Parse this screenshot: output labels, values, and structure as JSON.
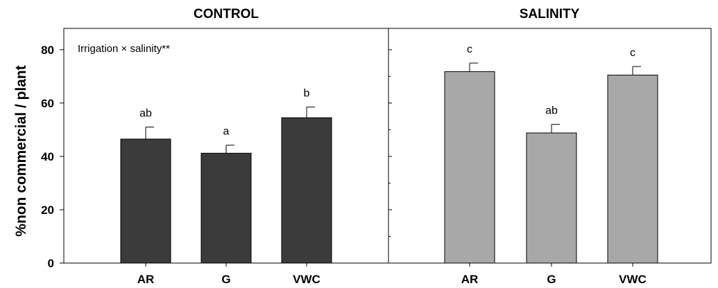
{
  "chart_data": [
    {
      "type": "bar",
      "title": "CONTROL",
      "ylabel": "%non commercial / plant",
      "ylim": [
        0,
        88
      ],
      "yticks": [
        "0",
        "20",
        "40",
        "60",
        "80"
      ],
      "categories": [
        "AR",
        "G",
        "VWC"
      ],
      "values": [
        46.5,
        41.2,
        54.5
      ],
      "errors": [
        4.5,
        3.0,
        4.0
      ],
      "significance": [
        "ab",
        "a",
        "b"
      ],
      "bar_color": "#3b3b3b",
      "annotation": "Irrigation × salinity**"
    },
    {
      "type": "bar",
      "title": "SALINITY",
      "ylim": [
        0,
        88
      ],
      "categories": [
        "AR",
        "G",
        "VWC"
      ],
      "values": [
        71.8,
        48.8,
        70.5
      ],
      "errors": [
        3.2,
        3.2,
        3.2
      ],
      "significance": [
        "c",
        "ab",
        "c"
      ],
      "bar_color": "#a8a8a8"
    }
  ]
}
